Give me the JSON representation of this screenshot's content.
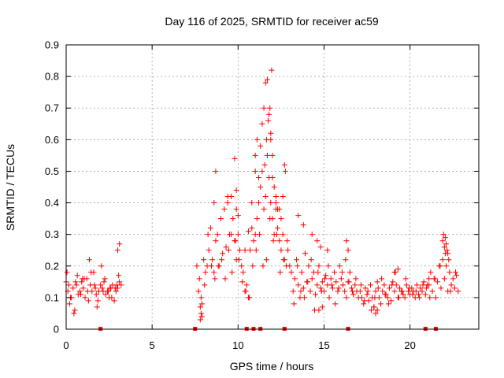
{
  "chart_data": {
    "type": "scatter",
    "title": "Day 116 of 2025, SRMTID for receiver ac59",
    "xlabel": "GPS time / hours",
    "ylabel": "SRMTID / TECUs",
    "xlim": [
      0,
      24
    ],
    "ylim": [
      0,
      0.9
    ],
    "xticks": [
      0,
      5,
      10,
      15,
      20
    ],
    "xtick_labels": [
      "0",
      "5",
      "10",
      "15",
      "20"
    ],
    "yticks": [
      0,
      0.1,
      0.2,
      0.3,
      0.4,
      0.5,
      0.6,
      0.7,
      0.8,
      0.9
    ],
    "ytick_labels": [
      "0",
      "0.1",
      "0.2",
      "0.3",
      "0.4",
      "0.5",
      "0.6",
      "0.7",
      "0.8",
      "0.9"
    ],
    "grid": true,
    "marker": "+",
    "color": "#ff0000",
    "series": [
      {
        "name": "SRMTID",
        "x": [
          0.0,
          0.1,
          0.2,
          0.3,
          0.4,
          0.5,
          0.6,
          0.7,
          0.8,
          0.9,
          1.0,
          1.1,
          1.2,
          1.3,
          1.4,
          1.5,
          1.6,
          1.7,
          1.8,
          1.9,
          2.0,
          2.1,
          2.2,
          2.3,
          2.4,
          2.5,
          2.6,
          2.7,
          2.8,
          2.9,
          3.0,
          3.1,
          3.2,
          0.05,
          0.25,
          0.45,
          0.65,
          0.85,
          1.05,
          1.25,
          1.45,
          1.65,
          1.85,
          2.05,
          2.25,
          2.45,
          2.65,
          2.85,
          3.05,
          0.15,
          0.55,
          0.95,
          1.35,
          1.75,
          2.15,
          2.55,
          2.95,
          3.1,
          3.0,
          7.6,
          7.7,
          7.8,
          7.9,
          8.0,
          8.1,
          8.2,
          8.3,
          8.4,
          8.5,
          8.6,
          8.7,
          8.8,
          8.9,
          9.0,
          9.1,
          9.2,
          9.3,
          9.4,
          9.5,
          9.6,
          9.7,
          9.8,
          9.9,
          10.0,
          10.1,
          10.2,
          10.3,
          10.4,
          10.5,
          10.6,
          10.7,
          10.8,
          10.9,
          11.0,
          11.1,
          11.2,
          11.3,
          11.4,
          11.5,
          11.6,
          11.7,
          11.8,
          11.9,
          12.0,
          12.1,
          12.2,
          12.3,
          12.4,
          12.5,
          12.6,
          12.7,
          12.8,
          12.9,
          13.0,
          7.75,
          7.85,
          8.05,
          8.25,
          8.45,
          8.65,
          8.85,
          9.05,
          9.25,
          9.45,
          9.65,
          9.85,
          10.05,
          10.25,
          10.45,
          10.65,
          10.85,
          11.05,
          11.25,
          11.45,
          11.65,
          11.85,
          12.05,
          12.25,
          12.45,
          12.65,
          12.85,
          8.6,
          8.7,
          9.4,
          9.8,
          9.9,
          10.0,
          9.6,
          10.8,
          11.0,
          11.1,
          11.3,
          11.4,
          11.5,
          11.6,
          11.7,
          11.8,
          11.9,
          12.0,
          12.1,
          12.2,
          11.55,
          11.65,
          11.75,
          11.85,
          11.95,
          12.3,
          12.5,
          12.6,
          12.7,
          12.75,
          7.8,
          7.85,
          7.9,
          9.9,
          10.4,
          10.6,
          11.0,
          11.2,
          11.9,
          12.0,
          12.2,
          12.4,
          13.1,
          13.2,
          13.3,
          13.4,
          13.5,
          13.6,
          13.7,
          13.8,
          13.9,
          14.0,
          14.1,
          14.2,
          14.3,
          14.4,
          14.5,
          14.6,
          14.7,
          14.8,
          14.9,
          15.0,
          15.1,
          15.2,
          15.3,
          15.4,
          15.5,
          15.6,
          15.7,
          15.8,
          15.9,
          16.0,
          16.1,
          16.2,
          16.3,
          16.4,
          16.5,
          16.6,
          16.7,
          16.8,
          16.9,
          17.0,
          13.25,
          13.45,
          13.65,
          13.85,
          14.05,
          14.25,
          14.45,
          14.65,
          14.85,
          15.05,
          15.25,
          15.45,
          15.65,
          15.85,
          16.05,
          16.25,
          16.45,
          16.65,
          16.85,
          13.5,
          13.8,
          14.3,
          14.6,
          14.8,
          15.2,
          16.3,
          16.4,
          14.7,
          14.9,
          17.1,
          17.2,
          17.3,
          17.4,
          17.5,
          17.6,
          17.7,
          17.8,
          17.9,
          18.0,
          18.1,
          18.2,
          18.3,
          18.4,
          18.5,
          18.6,
          18.7,
          18.8,
          18.9,
          19.0,
          19.1,
          19.2,
          19.3,
          19.4,
          19.5,
          19.6,
          19.7,
          19.8,
          19.9,
          20.0,
          20.1,
          20.2,
          20.3,
          20.4,
          20.5,
          20.6,
          20.7,
          20.8,
          20.9,
          21.0,
          17.15,
          17.35,
          17.55,
          17.75,
          17.95,
          18.15,
          18.35,
          18.55,
          18.75,
          18.95,
          19.15,
          19.35,
          19.55,
          19.75,
          19.95,
          20.15,
          20.35,
          20.55,
          20.75,
          20.95,
          18.0,
          18.1,
          17.9,
          19.1,
          19.3,
          21.1,
          21.1,
          21.2,
          21.3,
          21.4,
          21.5,
          21.6,
          21.7,
          21.8,
          21.9,
          22.0,
          22.1,
          22.2,
          22.3,
          22.4,
          22.5,
          22.6,
          22.7,
          22.8,
          21.15,
          21.45,
          21.75,
          22.05,
          22.35,
          22.65,
          21.9,
          21.95,
          22.0,
          22.05,
          22.1,
          22.15,
          22.2,
          22.25
        ],
        "y": [
          0.15,
          0.12,
          0.08,
          0.1,
          0.13,
          0.06,
          0.14,
          0.11,
          0.12,
          0.15,
          0.13,
          0.1,
          0.16,
          0.09,
          0.14,
          0.12,
          0.18,
          0.13,
          0.07,
          0.12,
          0.14,
          0.13,
          0.15,
          0.11,
          0.12,
          0.1,
          0.13,
          0.14,
          0.09,
          0.12,
          0.13,
          0.15,
          0.14,
          0.18,
          0.1,
          0.05,
          0.17,
          0.11,
          0.16,
          0.12,
          0.18,
          0.14,
          0.09,
          0.2,
          0.16,
          0.12,
          0.1,
          0.13,
          0.17,
          0.14,
          0.15,
          0.16,
          0.22,
          0.11,
          0.12,
          0.13,
          0.14,
          0.27,
          0.25,
          0.2,
          0.12,
          0.07,
          0.04,
          0.22,
          0.18,
          0.2,
          0.25,
          0.32,
          0.22,
          0.18,
          0.28,
          0.3,
          0.2,
          0.35,
          0.24,
          0.38,
          0.26,
          0.4,
          0.3,
          0.42,
          0.35,
          0.28,
          0.22,
          0.3,
          0.25,
          0.2,
          0.18,
          0.12,
          0.14,
          0.1,
          0.25,
          0.32,
          0.28,
          0.3,
          0.35,
          0.4,
          0.45,
          0.5,
          0.38,
          0.42,
          0.55,
          0.48,
          0.4,
          0.35,
          0.3,
          0.38,
          0.32,
          0.28,
          0.25,
          0.3,
          0.22,
          0.2,
          0.25,
          0.2,
          0.16,
          0.1,
          0.14,
          0.3,
          0.2,
          0.16,
          0.2,
          0.22,
          0.16,
          0.25,
          0.18,
          0.28,
          0.22,
          0.15,
          0.12,
          0.1,
          0.2,
          0.25,
          0.3,
          0.2,
          0.22,
          0.35,
          0.28,
          0.3,
          0.18,
          0.22,
          0.28,
          0.4,
          0.5,
          0.42,
          0.54,
          0.44,
          0.36,
          0.3,
          0.4,
          0.5,
          0.6,
          0.58,
          0.65,
          0.7,
          0.78,
          0.79,
          0.68,
          0.62,
          0.55,
          0.45,
          0.4,
          0.52,
          0.6,
          0.66,
          0.7,
          0.82,
          0.38,
          0.35,
          0.42,
          0.52,
          0.5,
          0.03,
          0.05,
          0.08,
          0.38,
          0.25,
          0.31,
          0.55,
          0.48,
          0.6,
          0.48,
          0.42,
          0.38,
          0.18,
          0.12,
          0.16,
          0.22,
          0.14,
          0.1,
          0.18,
          0.13,
          0.24,
          0.15,
          0.2,
          0.12,
          0.16,
          0.18,
          0.11,
          0.14,
          0.2,
          0.13,
          0.15,
          0.12,
          0.17,
          0.14,
          0.1,
          0.16,
          0.13,
          0.18,
          0.15,
          0.12,
          0.2,
          0.16,
          0.14,
          0.12,
          0.1,
          0.15,
          0.18,
          0.13,
          0.11,
          0.14,
          0.12,
          0.1,
          0.08,
          0.2,
          0.12,
          0.1,
          0.15,
          0.22,
          0.06,
          0.18,
          0.12,
          0.16,
          0.2,
          0.14,
          0.08,
          0.13,
          0.18,
          0.22,
          0.15,
          0.12,
          0.16,
          0.36,
          0.33,
          0.3,
          0.28,
          0.26,
          0.25,
          0.28,
          0.25,
          0.06,
          0.07,
          0.12,
          0.1,
          0.08,
          0.13,
          0.11,
          0.09,
          0.14,
          0.1,
          0.07,
          0.12,
          0.15,
          0.1,
          0.08,
          0.12,
          0.14,
          0.11,
          0.1,
          0.13,
          0.09,
          0.15,
          0.12,
          0.14,
          0.1,
          0.13,
          0.12,
          0.11,
          0.1,
          0.14,
          0.12,
          0.11,
          0.13,
          0.12,
          0.1,
          0.14,
          0.11,
          0.13,
          0.12,
          0.15,
          0.11,
          0.14,
          0.14,
          0.09,
          0.12,
          0.06,
          0.1,
          0.13,
          0.16,
          0.11,
          0.08,
          0.14,
          0.18,
          0.1,
          0.12,
          0.16,
          0.13,
          0.11,
          0.12,
          0.1,
          0.14,
          0.13,
          0.05,
          0.06,
          0.07,
          0.18,
          0.19,
          0.16,
          0.14,
          0.18,
          0.12,
          0.16,
          0.1,
          0.15,
          0.2,
          0.13,
          0.22,
          0.16,
          0.2,
          0.12,
          0.18,
          0.14,
          0.16,
          0.13,
          0.17,
          0.12,
          0.1,
          0.16,
          0.2,
          0.24,
          0.12,
          0.18,
          0.28,
          0.3,
          0.26,
          0.29,
          0.27,
          0.25,
          0.24,
          0.22
        ]
      }
    ],
    "gap_markers_x": [
      2.0,
      7.5,
      10.5,
      10.9,
      11.3,
      12.7,
      16.4,
      20.9,
      21.5
    ]
  }
}
